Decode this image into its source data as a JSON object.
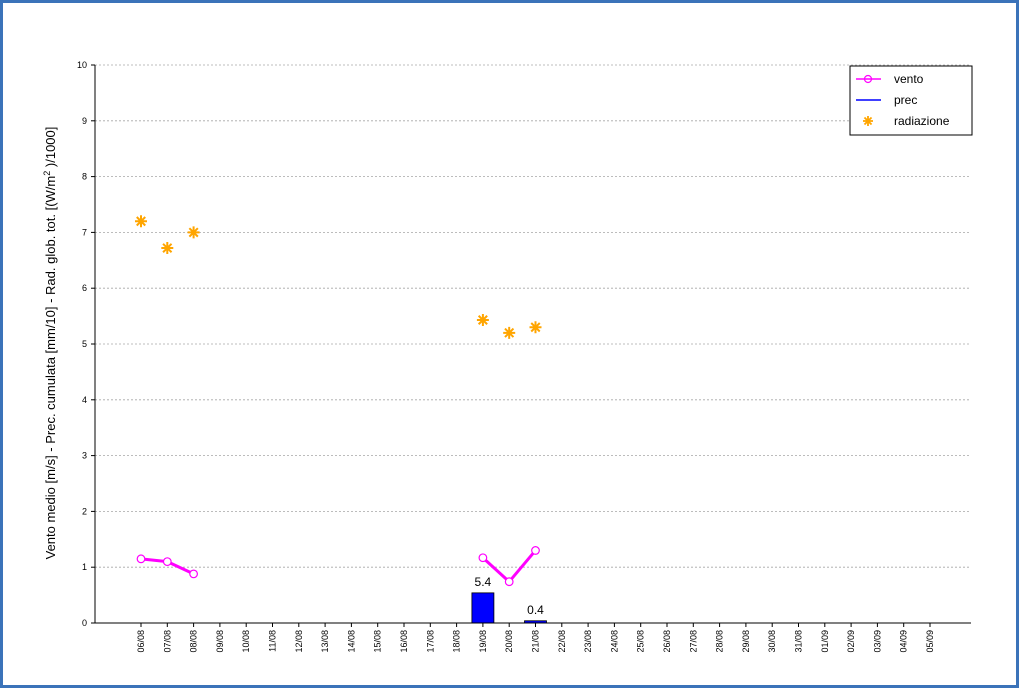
{
  "chart_data": {
    "type": "line",
    "ylabel_parts": {
      "pre": "Vento medio [m/s] - Prec. cumulata [mm/10] - Rad. glob. tot. [(W/m",
      "sup": "2",
      "post": " )/1000]"
    },
    "ylim": [
      0,
      10
    ],
    "yticks": [
      "0",
      "1",
      "2",
      "3",
      "4",
      "5",
      "6",
      "7",
      "8",
      "9",
      "10"
    ],
    "grid": true,
    "legend_position": "top-right",
    "categories": [
      "06/08",
      "07/08",
      "08/08",
      "09/08",
      "10/08",
      "11/08",
      "12/08",
      "13/08",
      "14/08",
      "15/08",
      "16/08",
      "17/08",
      "18/08",
      "19/08",
      "20/08",
      "21/08",
      "22/08",
      "23/08",
      "24/08",
      "25/08",
      "26/08",
      "27/08",
      "28/08",
      "29/08",
      "30/08",
      "31/08",
      "01/09",
      "02/09",
      "03/09",
      "04/09",
      "05/09"
    ],
    "series": [
      {
        "name": "vento",
        "kind": "line-circle",
        "color": "#ff00ff",
        "values": [
          1.15,
          1.1,
          0.88,
          null,
          null,
          null,
          null,
          null,
          null,
          null,
          null,
          null,
          null,
          1.17,
          0.74,
          1.3,
          null,
          null,
          null,
          null,
          null,
          null,
          null,
          null,
          null,
          null,
          null,
          null,
          null,
          null,
          null
        ]
      },
      {
        "name": "prec",
        "kind": "bar",
        "color": "#0000ff",
        "values": [
          null,
          null,
          null,
          null,
          null,
          null,
          null,
          null,
          null,
          null,
          null,
          null,
          null,
          0.54,
          null,
          0.04,
          null,
          null,
          null,
          null,
          null,
          null,
          null,
          null,
          null,
          null,
          null,
          null,
          null,
          null,
          null
        ],
        "labels": [
          null,
          null,
          null,
          null,
          null,
          null,
          null,
          null,
          null,
          null,
          null,
          null,
          null,
          "5.4",
          null,
          "0.4",
          null,
          null,
          null,
          null,
          null,
          null,
          null,
          null,
          null,
          null,
          null,
          null,
          null,
          null,
          null
        ]
      },
      {
        "name": "radiazione",
        "kind": "star",
        "color": "#ffa500",
        "values": [
          7.2,
          6.72,
          7.0,
          null,
          null,
          null,
          null,
          null,
          null,
          null,
          null,
          null,
          null,
          5.43,
          5.2,
          5.3,
          null,
          null,
          null,
          null,
          null,
          null,
          null,
          null,
          null,
          null,
          null,
          null,
          null,
          null,
          null
        ]
      }
    ]
  }
}
